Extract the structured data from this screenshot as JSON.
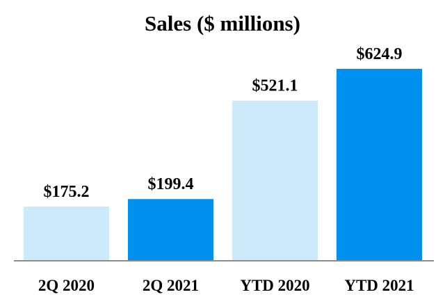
{
  "chart_data": {
    "type": "bar",
    "title": "Sales ($ millions)",
    "xlabel": "",
    "ylabel": "",
    "categories": [
      "2Q 2020",
      "2Q 2021",
      "YTD 2020",
      "YTD 2021"
    ],
    "values": [
      175.2,
      199.4,
      521.1,
      624.9
    ],
    "value_labels": [
      "$175.2",
      "$199.4",
      "$521.1",
      "$624.9"
    ],
    "bar_colors": [
      "#cdeafb",
      "#0090f0",
      "#cdeafb",
      "#0090f0"
    ],
    "ylim": [
      0,
      700
    ],
    "grid": false,
    "legend": "none"
  },
  "colors": {
    "baseline": "#8c8c8c",
    "light_bar": "#cdeafb",
    "dark_bar": "#0090f0"
  }
}
